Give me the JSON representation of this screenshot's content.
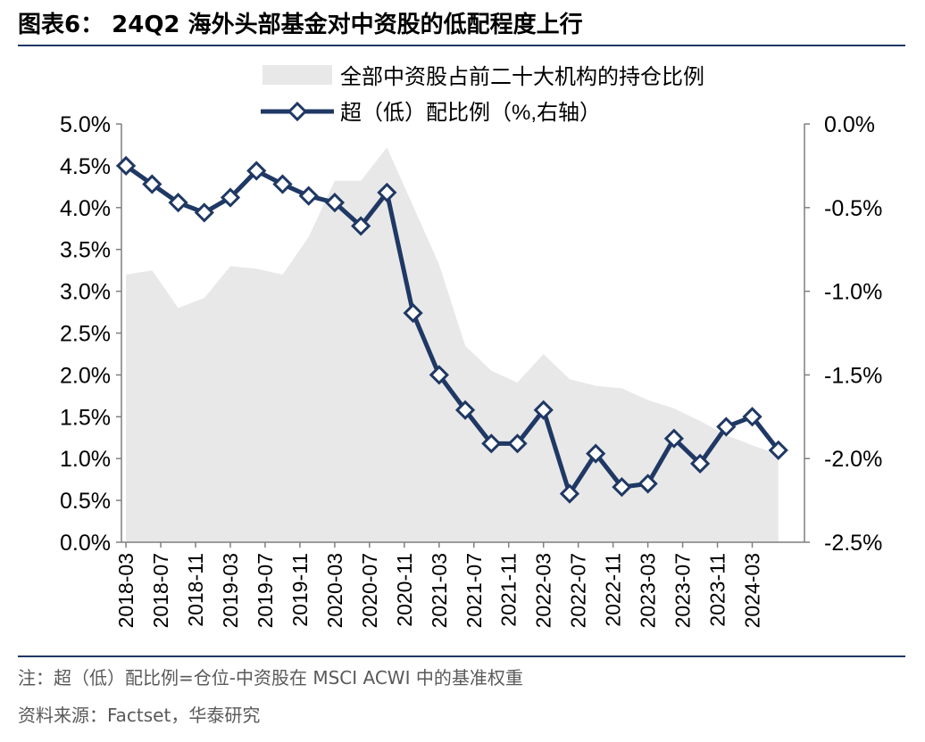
{
  "header": {
    "title": "图表6：  24Q2 海外头部基金对中资股的低配程度上行"
  },
  "footer": {
    "note": "注：超（低）配比例=仓位-中资股在 MSCI ACWI 中的基准权重",
    "source": "资料来源：Factset，华泰研究"
  },
  "chart_data": {
    "type": "area+line",
    "legend": {
      "area_label": "全部中资股占前二十大机构的持仓比例",
      "line_label": "超（低）配比例（%,右轴）",
      "placement": "top"
    },
    "colors": {
      "area": "#e8e8e8",
      "line": "#1f3864",
      "marker_fill": "#ffffff",
      "axis": "#7f7f7f"
    },
    "x_ticks": [
      "2018-03",
      "2018-07",
      "2018-11",
      "2019-03",
      "2019-07",
      "2019-11",
      "2020-03",
      "2020-07",
      "2020-11",
      "2021-03",
      "2021-07",
      "2021-11",
      "2022-03",
      "2022-07",
      "2022-11",
      "2023-03",
      "2023-07",
      "2023-11",
      "2024-03"
    ],
    "y_left_ticks": [
      "5.0%",
      "4.5%",
      "4.0%",
      "3.5%",
      "3.0%",
      "2.5%",
      "2.0%",
      "1.5%",
      "1.0%",
      "0.5%",
      "0.0%"
    ],
    "y_right_ticks": [
      "0.0%",
      "-0.5%",
      "-1.0%",
      "-1.5%",
      "-2.0%",
      "-2.5%"
    ],
    "y_left_range": [
      0,
      5.0
    ],
    "y_right_range": [
      -2.5,
      0
    ],
    "x_range": [
      2018.166,
      2024.667
    ],
    "series": [
      {
        "name": "全部中资股占前二十大机构的持仓比例",
        "axis": "left",
        "type": "area",
        "x": [
          2018.167,
          2018.417,
          2018.667,
          2018.917,
          2019.167,
          2019.417,
          2019.667,
          2019.917,
          2020.167,
          2020.417,
          2020.667,
          2020.917,
          2021.167,
          2021.417,
          2021.667,
          2021.917,
          2022.167,
          2022.417,
          2022.667,
          2022.917,
          2023.167,
          2023.417,
          2023.667,
          2023.917,
          2024.167,
          2024.417
        ],
        "values": [
          3.2,
          3.25,
          2.8,
          2.92,
          3.3,
          3.27,
          3.2,
          3.65,
          4.32,
          4.32,
          4.72,
          4.02,
          3.32,
          2.35,
          2.05,
          1.91,
          2.25,
          1.95,
          1.87,
          1.84,
          1.7,
          1.6,
          1.45,
          1.28,
          1.16,
          1.05
        ]
      },
      {
        "name": "超（低）配比例（%,右轴）",
        "axis": "right",
        "type": "line",
        "x": [
          2018.167,
          2018.417,
          2018.667,
          2018.917,
          2019.167,
          2019.417,
          2019.667,
          2019.917,
          2020.167,
          2020.417,
          2020.667,
          2020.917,
          2021.167,
          2021.417,
          2021.667,
          2021.917,
          2022.167,
          2022.417,
          2022.667,
          2022.917,
          2023.167,
          2023.417,
          2023.667,
          2023.917,
          2024.167,
          2024.417
        ],
        "values": [
          -0.25,
          -0.36,
          -0.47,
          -0.53,
          -0.44,
          -0.28,
          -0.36,
          -0.43,
          -0.47,
          -0.61,
          -0.41,
          -1.13,
          -1.5,
          -1.71,
          -1.91,
          -1.91,
          -1.71,
          -2.21,
          -1.97,
          -2.17,
          -2.15,
          -1.88,
          -2.03,
          -1.81,
          -1.75,
          -1.95
        ]
      }
    ]
  }
}
